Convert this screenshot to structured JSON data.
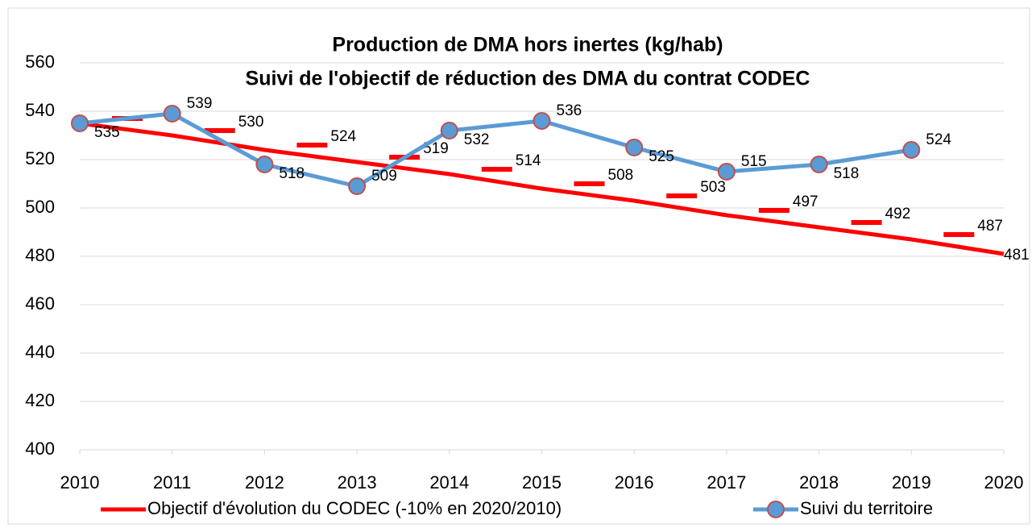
{
  "chart_data": {
    "type": "line",
    "title": "Production de DMA hors inertes (kg/hab)",
    "subtitle": "Suivi de l'objectif de réduction des DMA du contrat CODEC",
    "x": [
      2010,
      2011,
      2012,
      2013,
      2014,
      2015,
      2016,
      2017,
      2018,
      2019,
      2020
    ],
    "xlim": [
      2010,
      2020
    ],
    "xticks": [
      2010,
      2011,
      2012,
      2013,
      2014,
      2015,
      2016,
      2017,
      2018,
      2019,
      2020
    ],
    "ylim": [
      400,
      560
    ],
    "yticks": [
      400,
      420,
      440,
      460,
      480,
      500,
      520,
      540,
      560
    ],
    "grid": true,
    "legend": "bottom",
    "series": [
      {
        "name": "Objectif d'évolution du CODEC (-10% en 2020/2010)",
        "color": "#ff0000",
        "marker": "dash",
        "values": [
          535,
          530,
          524,
          519,
          514,
          508,
          503,
          497,
          492,
          487,
          481
        ],
        "value_labels": [
          null,
          "530",
          "524",
          "519",
          "514",
          "508",
          "503",
          "497",
          "492",
          "487",
          "481"
        ]
      },
      {
        "name": "Suivi du territoire",
        "color": "#5b9bd5",
        "marker": "circle",
        "values": [
          535,
          539,
          518,
          509,
          532,
          536,
          525,
          515,
          518,
          524,
          null
        ],
        "value_labels": [
          "535",
          "539",
          "518",
          "509",
          "532",
          "536",
          "525",
          "515",
          "518",
          "524",
          null
        ]
      }
    ]
  }
}
